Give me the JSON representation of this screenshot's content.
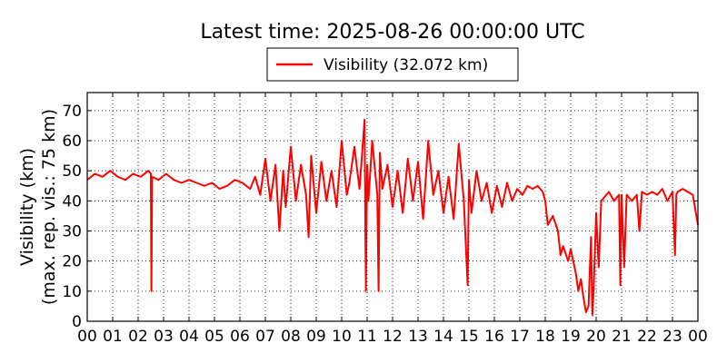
{
  "chart_data": {
    "type": "line",
    "title": "Latest time: 2025-08-26 00:00:00 UTC",
    "ylabel_line1": "Visibility (km)",
    "ylabel_line2": "(max. rep. vis.: 75 km)",
    "xlabel": "",
    "xlim": [
      0,
      24
    ],
    "ylim": [
      0,
      76
    ],
    "x_ticks": [
      "00",
      "01",
      "02",
      "03",
      "04",
      "05",
      "06",
      "07",
      "08",
      "09",
      "10",
      "11",
      "12",
      "13",
      "14",
      "15",
      "16",
      "17",
      "18",
      "19",
      "20",
      "21",
      "22",
      "23",
      "00"
    ],
    "y_ticks": [
      0,
      10,
      20,
      30,
      40,
      50,
      60,
      70
    ],
    "grid": true,
    "grid_style": "dotted",
    "legend_position": "top-center",
    "colors": {
      "series": "#ff0000",
      "axes": "#000000",
      "grid": "#000000"
    },
    "series": [
      {
        "name": "Visibility (32.072 km)",
        "x_hours": [
          0.0,
          0.3,
          0.6,
          0.9,
          1.2,
          1.5,
          1.8,
          2.1,
          2.4,
          2.5,
          2.52,
          2.55,
          2.8,
          3.1,
          3.4,
          3.7,
          4.0,
          4.3,
          4.6,
          4.9,
          5.2,
          5.5,
          5.8,
          6.1,
          6.4,
          6.6,
          6.8,
          7.0,
          7.2,
          7.4,
          7.55,
          7.7,
          7.8,
          8.0,
          8.2,
          8.4,
          8.6,
          8.7,
          8.8,
          9.0,
          9.2,
          9.4,
          9.6,
          9.8,
          10.0,
          10.2,
          10.3,
          10.5,
          10.7,
          10.9,
          10.95,
          11.0,
          11.05,
          11.2,
          11.4,
          11.45,
          11.5,
          11.6,
          11.8,
          12.0,
          12.2,
          12.4,
          12.6,
          12.8,
          13.0,
          13.2,
          13.4,
          13.6,
          13.8,
          14.0,
          14.2,
          14.4,
          14.6,
          14.8,
          14.95,
          15.0,
          15.1,
          15.3,
          15.5,
          15.7,
          15.9,
          16.1,
          16.3,
          16.5,
          16.7,
          16.9,
          17.1,
          17.3,
          17.5,
          17.7,
          17.9,
          18.0,
          18.1,
          18.3,
          18.5,
          18.6,
          18.7,
          18.9,
          19.0,
          19.2,
          19.3,
          19.4,
          19.5,
          19.6,
          19.7,
          19.8,
          19.85,
          19.9,
          20.0,
          20.1,
          20.2,
          20.3,
          20.5,
          20.7,
          20.9,
          20.95,
          21.0,
          21.1,
          21.2,
          21.4,
          21.6,
          21.7,
          21.8,
          22.0,
          22.2,
          22.4,
          22.6,
          22.8,
          23.0,
          23.1,
          23.15,
          23.2,
          23.4,
          23.6,
          23.8,
          24.0
        ],
        "values_km": [
          47,
          49,
          48,
          50,
          48,
          47,
          49,
          48,
          50,
          49,
          10,
          48,
          47,
          49,
          47,
          46,
          47,
          46,
          45,
          46,
          44,
          45,
          47,
          46,
          44,
          48,
          42,
          54,
          40,
          52,
          30,
          50,
          38,
          58,
          40,
          52,
          42,
          28,
          55,
          36,
          53,
          40,
          50,
          38,
          60,
          42,
          46,
          58,
          44,
          67,
          10,
          52,
          40,
          60,
          42,
          10,
          56,
          44,
          52,
          38,
          50,
          36,
          54,
          40,
          53,
          34,
          60,
          42,
          50,
          36,
          48,
          34,
          59,
          40,
          12,
          47,
          36,
          50,
          40,
          46,
          36,
          45,
          38,
          46,
          40,
          44,
          42,
          45,
          44,
          45,
          43,
          40,
          32,
          35,
          30,
          22,
          25,
          20,
          24,
          16,
          10,
          14,
          8,
          3,
          5,
          28,
          2,
          10,
          36,
          18,
          40,
          41,
          43,
          40,
          42,
          12,
          42,
          18,
          42,
          40,
          42,
          30,
          43,
          42,
          43,
          42,
          44,
          40,
          43,
          22,
          42,
          43,
          44,
          43,
          42,
          32
        ]
      }
    ]
  }
}
